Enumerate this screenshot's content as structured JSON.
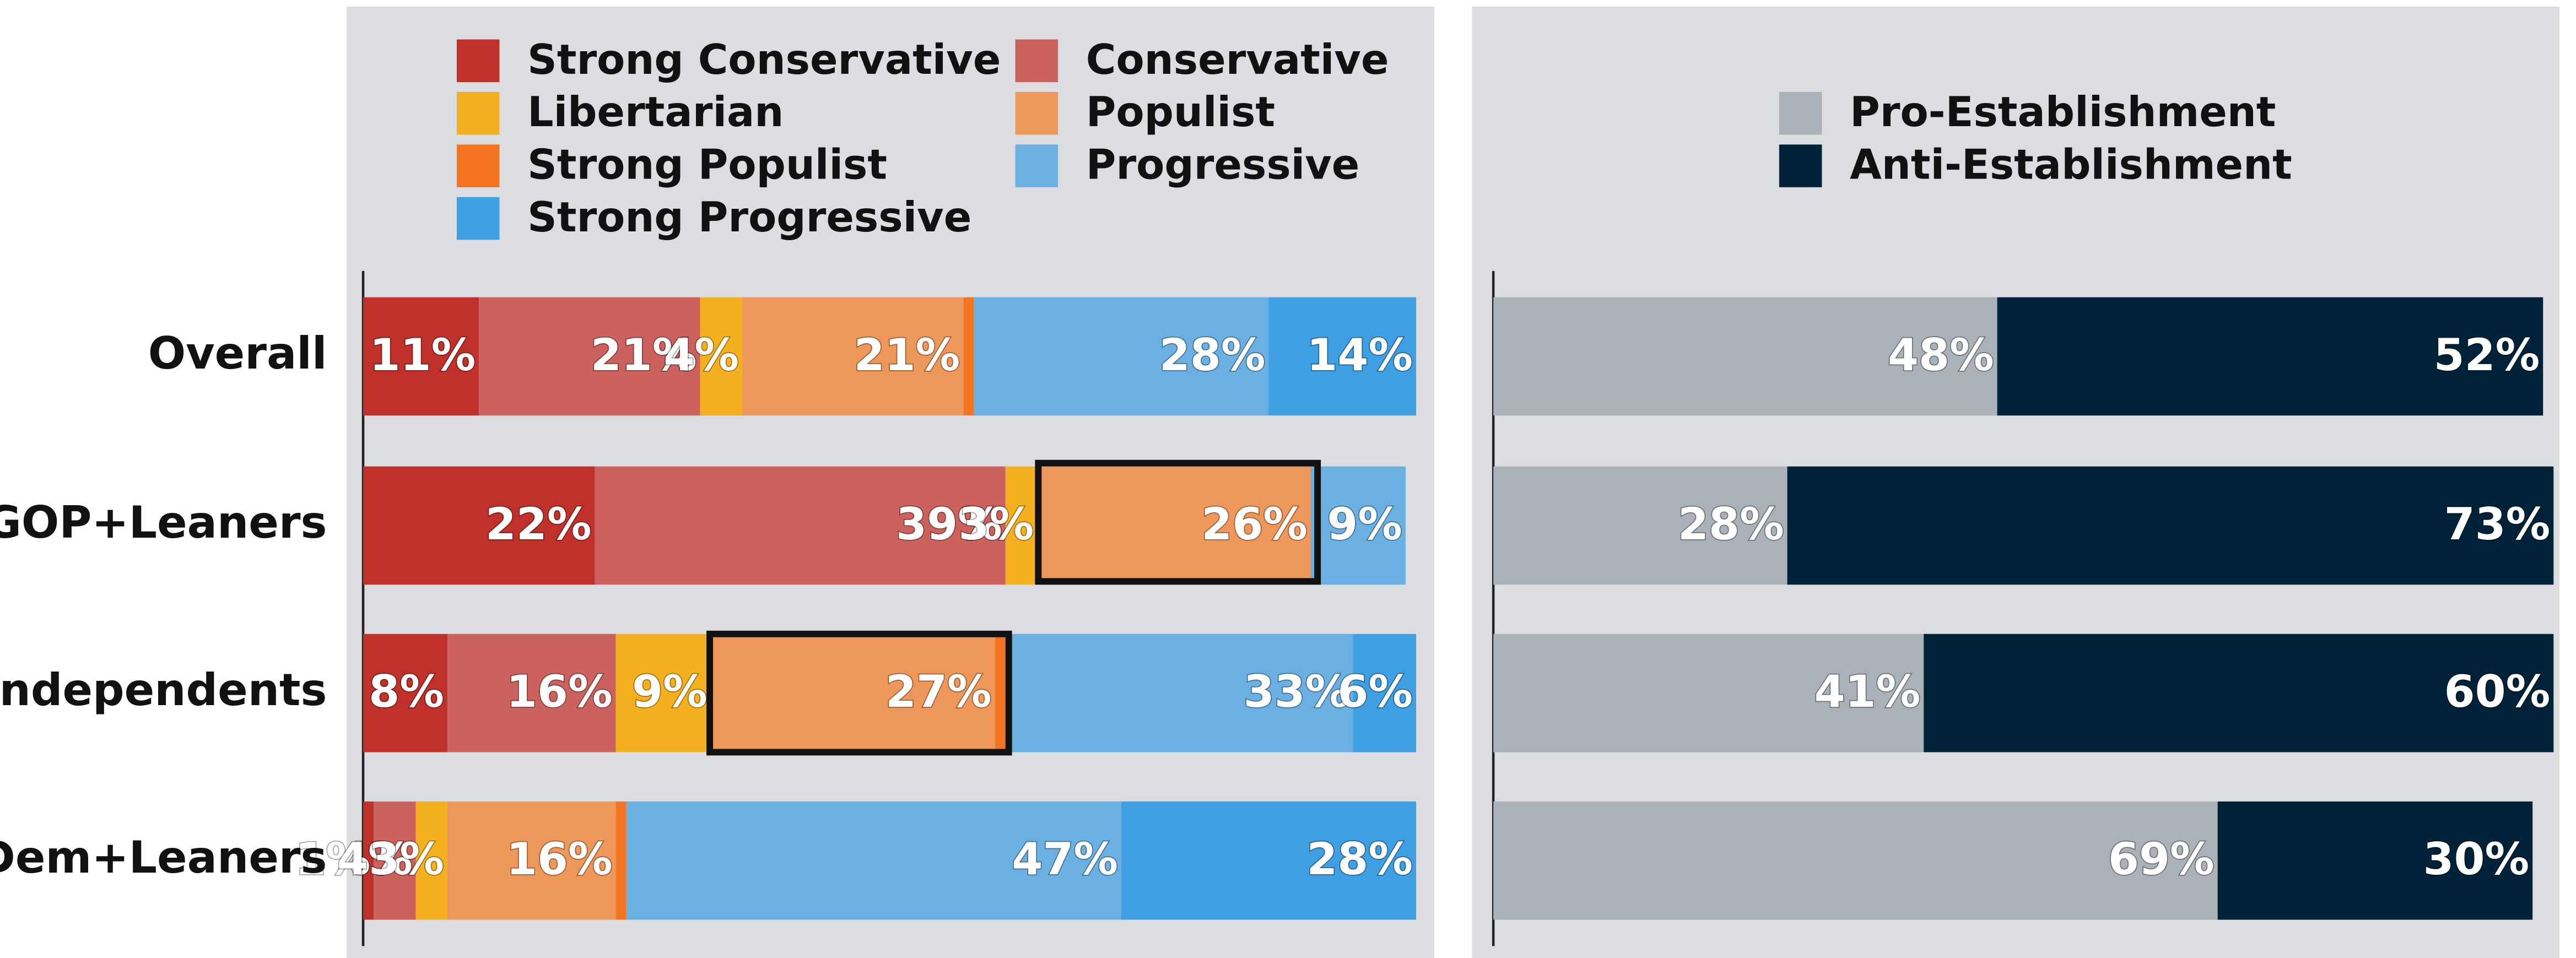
{
  "chart_data": [
    {
      "type": "bar",
      "orientation": "horizontal",
      "stacked": true,
      "categories": [
        "Overall",
        "GOP+Leaners",
        "Independents",
        "Dem+Leaners"
      ],
      "xlim": [
        0,
        100
      ],
      "series": [
        {
          "name": "Strong Conservative",
          "color": "#c0312b",
          "values": [
            11,
            22,
            8,
            1
          ],
          "value_labels": [
            "11%",
            "22%",
            "8%",
            "1%"
          ]
        },
        {
          "name": "Conservative",
          "color": "#cb625d",
          "values": [
            21,
            39,
            16,
            4
          ],
          "value_labels": [
            "21%",
            "39%",
            "16%",
            "4%"
          ]
        },
        {
          "name": "Libertarian",
          "color": "#f5b020",
          "values": [
            4,
            3,
            9,
            3
          ],
          "value_labels": [
            "4%",
            "3%",
            "9%",
            "3%"
          ]
        },
        {
          "name": "Populist",
          "color": "#ee975a",
          "values": [
            21,
            26,
            27,
            16
          ],
          "value_labels": [
            "21%",
            "26%",
            "27%",
            "16%"
          ]
        },
        {
          "name": "Strong Populist",
          "color": "#f47421",
          "values": [
            1,
            0,
            1,
            1
          ],
          "value_labels": [
            null,
            null,
            null,
            null
          ]
        },
        {
          "name": "Progressive",
          "color": "#6ab0e2",
          "values": [
            28,
            9,
            33,
            47
          ],
          "value_labels": [
            "28%",
            "9%",
            "33%",
            "47%"
          ]
        },
        {
          "name": "Strong Progressive",
          "color": "#3e9fe3",
          "values": [
            14,
            0,
            6,
            28
          ],
          "value_labels": [
            "14%",
            null,
            "6%",
            "28%"
          ]
        }
      ]
    },
    {
      "type": "bar",
      "orientation": "horizontal",
      "stacked": true,
      "categories": [
        "Overall",
        "GOP+Leaners",
        "Independents",
        "Dem+Leaners"
      ],
      "xlim": [
        0,
        100
      ],
      "series": [
        {
          "name": "Pro-Establishment",
          "color": "#abb1b8",
          "values": [
            48,
            28,
            41,
            69
          ],
          "value_labels": [
            "48%",
            "28%",
            "41%",
            "69%"
          ]
        },
        {
          "name": "Anti-Establishment",
          "color": "#00233a",
          "values": [
            52,
            73,
            60,
            30
          ],
          "value_labels": [
            "52%",
            "73%",
            "60%",
            "30%"
          ]
        }
      ]
    }
  ]
}
